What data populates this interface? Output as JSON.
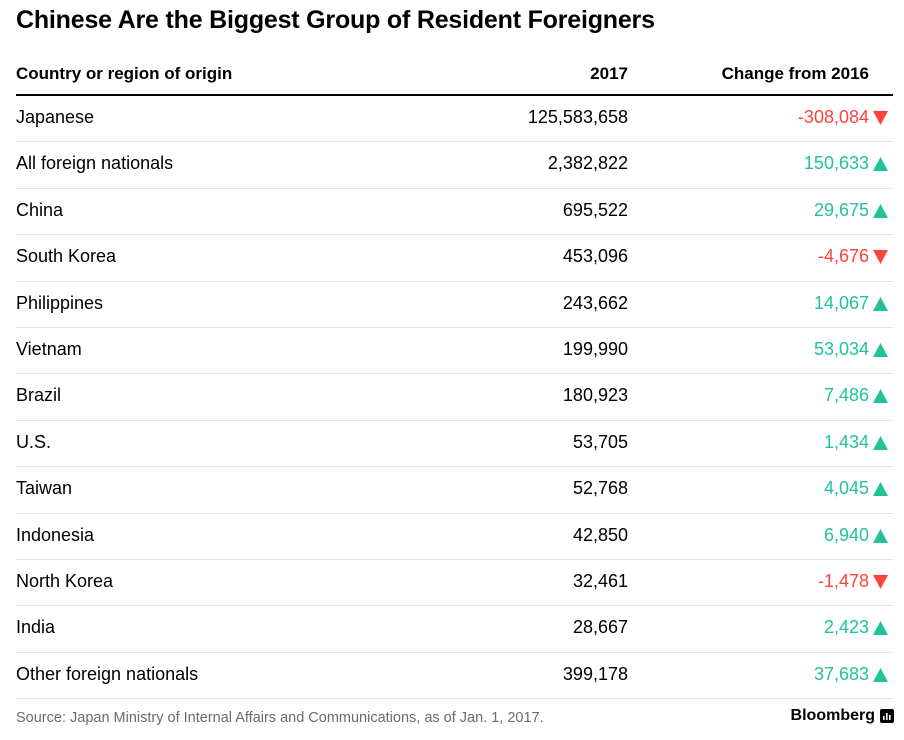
{
  "chart_data": {
    "type": "table",
    "title": "Chinese Are the Biggest Group of Resident Foreigners",
    "columns": [
      "Country or region of origin",
      "2017",
      "Change from 2016"
    ],
    "rows": [
      {
        "name": "Japanese",
        "value": "125,583,658",
        "change": "-308,084",
        "direction": "down"
      },
      {
        "name": "All foreign nationals",
        "value": "2,382,822",
        "change": "150,633",
        "direction": "up"
      },
      {
        "name": "China",
        "value": "695,522",
        "change": "29,675",
        "direction": "up"
      },
      {
        "name": "South Korea",
        "value": "453,096",
        "change": "-4,676",
        "direction": "down"
      },
      {
        "name": "Philippines",
        "value": "243,662",
        "change": "14,067",
        "direction": "up"
      },
      {
        "name": "Vietnam",
        "value": "199,990",
        "change": "53,034",
        "direction": "up"
      },
      {
        "name": "Brazil",
        "value": "180,923",
        "change": "7,486",
        "direction": "up"
      },
      {
        "name": "U.S.",
        "value": "53,705",
        "change": "1,434",
        "direction": "up"
      },
      {
        "name": "Taiwan",
        "value": "52,768",
        "change": "4,045",
        "direction": "up"
      },
      {
        "name": "Indonesia",
        "value": "42,850",
        "change": "6,940",
        "direction": "up"
      },
      {
        "name": "North Korea",
        "value": "32,461",
        "change": "-1,478",
        "direction": "down"
      },
      {
        "name": "India",
        "value": "28,667",
        "change": "2,423",
        "direction": "up"
      },
      {
        "name": "Other foreign nationals",
        "value": "399,178",
        "change": "37,683",
        "direction": "up"
      }
    ],
    "source": "Source: Japan Ministry of Internal Affairs and Communications, as of Jan. 1, 2017."
  },
  "brand": "Bloomberg",
  "colors": {
    "negative": "#ff433d",
    "positive": "#22c39a",
    "text": "#000000",
    "source": "#6b6b6b"
  }
}
